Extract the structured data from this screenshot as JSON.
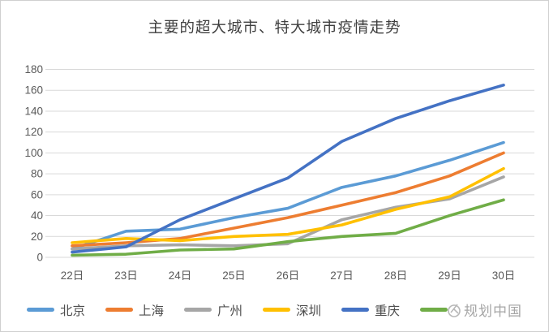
{
  "title": "主要的超大城市、特大城市疫情走势",
  "watermark": {
    "text": "规划中国",
    "logo": "round-logo"
  },
  "axis_colors": {
    "grid": "#d9d9d9",
    "tick_text": "#595959"
  },
  "chart_data": {
    "type": "line",
    "title": "主要的超大城市、特大城市疫情走势",
    "categories": [
      "22日",
      "23日",
      "24日",
      "25日",
      "26日",
      "27日",
      "28日",
      "29日",
      "30日"
    ],
    "xlabel": "",
    "ylabel": "",
    "ylim": [
      0,
      180
    ],
    "y_ticks": [
      0,
      20,
      40,
      60,
      80,
      100,
      120,
      140,
      160,
      180
    ],
    "grid": "horizontal",
    "legend_position": "bottom",
    "series": [
      {
        "name": "北京",
        "color": "#5B9BD5",
        "values": [
          8,
          25,
          27,
          38,
          47,
          67,
          78,
          93,
          110
        ]
      },
      {
        "name": "上海",
        "color": "#ED7D31",
        "values": [
          11,
          14,
          18,
          28,
          38,
          50,
          62,
          78,
          100
        ]
      },
      {
        "name": "广州",
        "color": "#A6A6A6",
        "values": [
          8,
          11,
          12,
          11,
          13,
          36,
          48,
          56,
          77
        ]
      },
      {
        "name": "深圳",
        "color": "#FFC000",
        "values": [
          14,
          18,
          16,
          20,
          22,
          31,
          46,
          58,
          85
        ]
      },
      {
        "name": "重庆",
        "color": "#4472C4",
        "values": [
          5,
          10,
          36,
          56,
          76,
          111,
          133,
          150,
          165
        ]
      },
      {
        "name": "",
        "color": "#70AD47",
        "values": [
          2,
          3,
          7,
          8,
          15,
          20,
          23,
          40,
          55
        ],
        "label_obscured_by_watermark": true
      }
    ]
  }
}
